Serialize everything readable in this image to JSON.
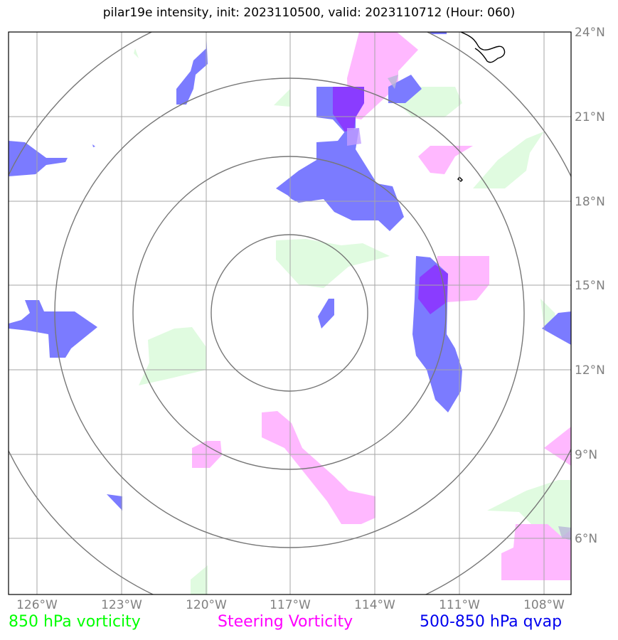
{
  "title": "pilar19e intensity, init: 2023110500, valid: 2023110712 (Hour: 060)",
  "longitude_ticks": [
    "126°W",
    "123°W",
    "120°W",
    "117°W",
    "114°W",
    "111°W",
    "108°W"
  ],
  "latitude_ticks": [
    "24°N",
    "21°N",
    "18°N",
    "15°N",
    "12°N",
    "9°N",
    "6°N"
  ],
  "legend": {
    "vort850": {
      "label": "850 hPa vorticity",
      "color": "#00ff00"
    },
    "steering": {
      "label": "Steering Vorticity",
      "color": "#ff00ff"
    },
    "qvap": {
      "label": "500-850 hPa qvap",
      "color": "#0000ee"
    }
  },
  "fill_colors": {
    "vort850": "#e0fbe0",
    "steering": "#ffb8ff",
    "qvap": "#7b7bff",
    "overlap": "#8a3cff"
  }
}
